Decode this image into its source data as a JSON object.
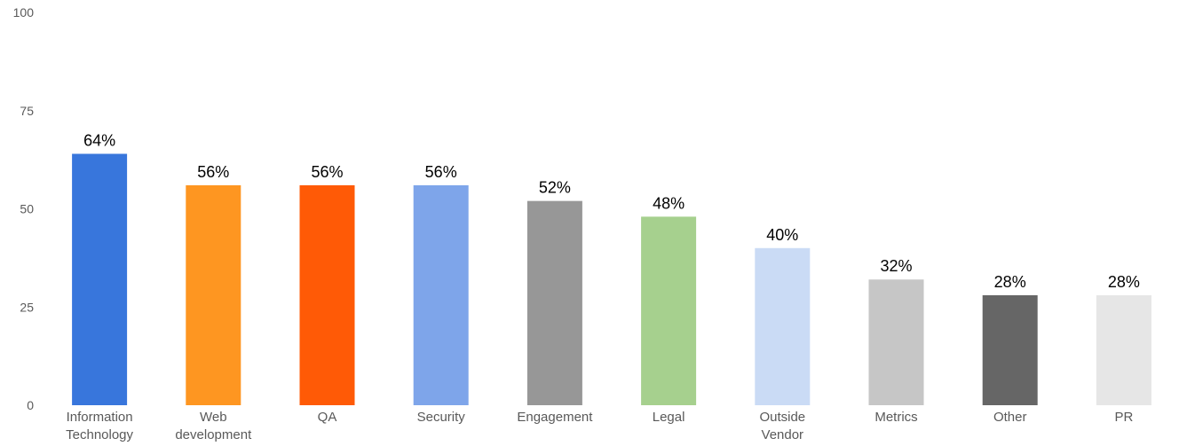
{
  "chart_data": {
    "type": "bar",
    "title": "",
    "xlabel": "",
    "ylabel": "",
    "ylim": [
      0,
      100
    ],
    "yticks": [
      0,
      25,
      50,
      75,
      100
    ],
    "grid": false,
    "legend": "none",
    "categories": [
      [
        "Information",
        "Technology"
      ],
      [
        "Web",
        "development"
      ],
      [
        "QA"
      ],
      [
        "Security"
      ],
      [
        "Engagement"
      ],
      [
        "Legal"
      ],
      [
        "Outside",
        "Vendor"
      ],
      [
        "Metrics"
      ],
      [
        "Other"
      ],
      [
        "PR"
      ]
    ],
    "values": [
      64,
      56,
      56,
      56,
      52,
      48,
      40,
      32,
      28,
      28
    ],
    "data_labels": [
      "64%",
      "56%",
      "56%",
      "56%",
      "52%",
      "48%",
      "40%",
      "32%",
      "28%",
      "28%"
    ],
    "colors": [
      "#3876dc",
      "#fe9621",
      "#ff5a06",
      "#7ea5ea",
      "#979797",
      "#a6d08e",
      "#cadbf5",
      "#c6c6c6",
      "#666666",
      "#e6e6e6"
    ]
  }
}
